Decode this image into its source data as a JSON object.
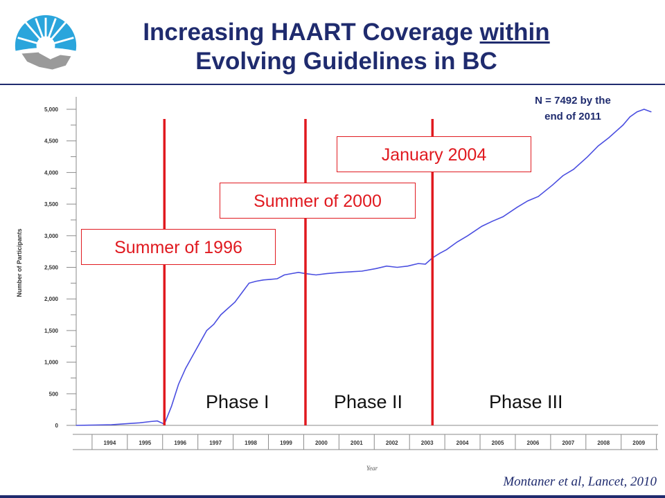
{
  "header": {
    "title_part1": "Increasing HAART Coverage ",
    "title_underlined": "within",
    "title_part2": "Evolving Guidelines in BC"
  },
  "logo": {
    "icon": "sunburst-handshake-logo-icon",
    "colors": [
      "#2aa5dc",
      "#9a9a9a"
    ]
  },
  "annotations": {
    "note_line1": "N = 7492 by the",
    "note_line2": "end of 2011",
    "callouts": [
      "Summer of 1996",
      "Summer of 2000",
      "January 2004"
    ],
    "phases": [
      "Phase I",
      "Phase II",
      "Phase III"
    ],
    "citation": "Montaner et al, Lancet, 2010"
  },
  "colors": {
    "line": "#4a4ee0",
    "marker": "#e0191f",
    "title": "#1f2b6e"
  },
  "chart_data": {
    "type": "line",
    "title": "",
    "xlabel": "Year",
    "ylabel": "Number of Participants",
    "ylim": [
      0,
      5000
    ],
    "xlim": [
      1993.5,
      2009.8
    ],
    "yticks": [
      0,
      500,
      1000,
      1500,
      2000,
      2500,
      3000,
      3500,
      4000,
      4500,
      5000
    ],
    "ytick_labels": [
      "0",
      "500",
      "1,000",
      "1,500",
      "2,000",
      "2,500",
      "3,000",
      "3,500",
      "4,000",
      "4,500",
      "5,000"
    ],
    "xtick_labels": [
      "1994",
      "1995",
      "1996",
      "1997",
      "1998",
      "1999",
      "2000",
      "2001",
      "2002",
      "2003",
      "2004",
      "2005",
      "2006",
      "2007",
      "2008",
      "2009"
    ],
    "grid": false,
    "legend": "none",
    "vlines": [
      1996.0,
      2000.0,
      2003.6
    ],
    "series": [
      {
        "x": [
          1993.5,
          1994.0,
          1994.5,
          1995.0,
          1995.3,
          1995.6,
          1995.8,
          1996.0,
          1996.2,
          1996.4,
          1996.6,
          1996.8,
          1997.0,
          1997.2,
          1997.4,
          1997.6,
          1997.8,
          1998.0,
          1998.2,
          1998.4,
          1998.6,
          1998.8,
          1999.0,
          1999.2,
          1999.4,
          1999.6,
          1999.8,
          2000.0,
          2000.3,
          2000.6,
          2001.0,
          2001.3,
          2001.6,
          2002.0,
          2002.3,
          2002.6,
          2002.9,
          2003.2,
          2003.4,
          2003.6,
          2003.8,
          2004.0,
          2004.3,
          2004.6,
          2005.0,
          2005.3,
          2005.6,
          2006.0,
          2006.3,
          2006.6,
          2007.0,
          2007.3,
          2007.6,
          2008.0,
          2008.3,
          2008.6,
          2009.0,
          2009.2,
          2009.4,
          2009.6,
          2009.8
        ],
        "values": [
          0,
          5,
          10,
          30,
          40,
          60,
          70,
          20,
          300,
          650,
          900,
          1100,
          1300,
          1500,
          1600,
          1750,
          1850,
          1950,
          2100,
          2250,
          2280,
          2300,
          2310,
          2320,
          2380,
          2400,
          2420,
          2400,
          2380,
          2400,
          2420,
          2430,
          2440,
          2480,
          2520,
          2500,
          2520,
          2560,
          2550,
          2650,
          2720,
          2780,
          2900,
          3000,
          3150,
          3230,
          3300,
          3450,
          3550,
          3620,
          3800,
          3950,
          4050,
          4250,
          4420,
          4550,
          4750,
          4880,
          4960,
          5000,
          4960
        ]
      }
    ]
  }
}
